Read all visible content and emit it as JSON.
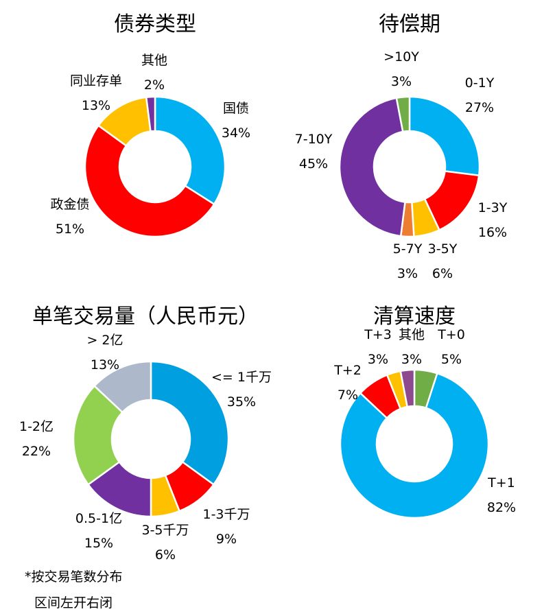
{
  "chart_data": [
    {
      "type": "pie",
      "variant": "donut",
      "title": "债券类型",
      "slices": [
        {
          "label": "国债",
          "value": 34,
          "pct_text": "34%",
          "color": "#00B0F0"
        },
        {
          "label": "政金债",
          "value": 51,
          "pct_text": "51%",
          "color": "#FF0000"
        },
        {
          "label": "同业存单",
          "value": 13,
          "pct_text": "13%",
          "color": "#FFC000"
        },
        {
          "label": "其他",
          "value": 2,
          "pct_text": "2%",
          "color": "#7030A0"
        }
      ]
    },
    {
      "type": "pie",
      "variant": "donut",
      "title": "待偿期",
      "slices": [
        {
          "label": "0-1Y",
          "value": 27,
          "pct_text": "27%",
          "color": "#00B0F0"
        },
        {
          "label": "1-3Y",
          "value": 16,
          "pct_text": "16%",
          "color": "#FF0000"
        },
        {
          "label": "3-5Y",
          "value": 6,
          "pct_text": "6%",
          "color": "#FFC000"
        },
        {
          "label": "5-7Y",
          "value": 3,
          "pct_text": "3%",
          "color": "#ED7D31"
        },
        {
          "label": "7-10Y",
          "value": 45,
          "pct_text": "45%",
          "color": "#7030A0"
        },
        {
          "label": ">10Y",
          "value": 3,
          "pct_text": "3%",
          "color": "#70AD47"
        }
      ]
    },
    {
      "type": "pie",
      "variant": "donut",
      "title": "单笔交易量（人民币元）",
      "slices": [
        {
          "label": "<= 1千万",
          "value": 35,
          "pct_text": "35%",
          "color": "#00A0E0"
        },
        {
          "label": "1-3千万",
          "value": 9,
          "pct_text": "9%",
          "color": "#FF0000"
        },
        {
          "label": "3-5千万",
          "value": 6,
          "pct_text": "6%",
          "color": "#FFC000"
        },
        {
          "label": "0.5-1亿",
          "value": 15,
          "pct_text": "15%",
          "color": "#7030A0"
        },
        {
          "label": "1-2亿",
          "value": 22,
          "pct_text": "22%",
          "color": "#92D050"
        },
        {
          "label": "> 2亿",
          "value": 13,
          "pct_text": "13%",
          "color": "#ADB9CA"
        }
      ]
    },
    {
      "type": "pie",
      "variant": "donut",
      "title": "清算速度",
      "slices": [
        {
          "label": "T+0",
          "value": 5,
          "pct_text": "5%",
          "color": "#70AD47"
        },
        {
          "label": "T+1",
          "value": 82,
          "pct_text": "82%",
          "color": "#00B0F0"
        },
        {
          "label": "T+2",
          "value": 7,
          "pct_text": "7%",
          "color": "#FF0000"
        },
        {
          "label": "T+3",
          "value": 3,
          "pct_text": "3%",
          "color": "#FFC000"
        },
        {
          "label": "其他",
          "value": 3,
          "pct_text": "3%",
          "color": "#8E4A8E"
        }
      ]
    }
  ],
  "footnote": {
    "line1": "*按交易笔数分布",
    "line2": "区间左开右闭"
  }
}
